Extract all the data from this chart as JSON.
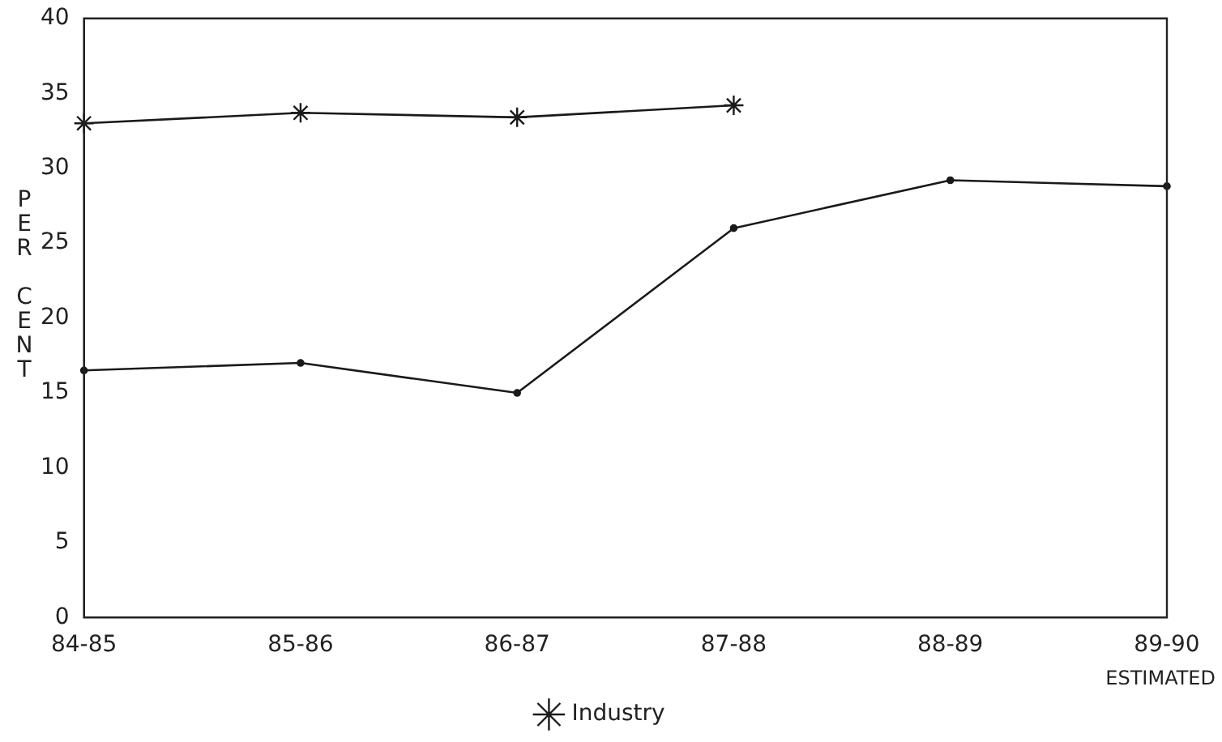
{
  "chart_data": {
    "type": "line",
    "ylabel": "PER CENT",
    "categories": [
      "84-85",
      "85-86",
      "86-87",
      "87-88",
      "88-89",
      "89-90"
    ],
    "series": [
      {
        "color": "#1a1a1a",
        "marker": "circle",
        "values": [
          16.5,
          17,
          15,
          26,
          29.2,
          28.8
        ]
      },
      {
        "name": "Industry",
        "color": "#1a1a1a",
        "marker": "cross",
        "values": [
          33,
          33.7,
          33.4,
          34.2,
          null,
          null
        ]
      }
    ],
    "ylim": [
      0,
      40
    ],
    "yticks": [
      0,
      5,
      10,
      15,
      20,
      25,
      30,
      35,
      40
    ],
    "grid": false,
    "legend": "bottom",
    "line_style": "solid",
    "annotations": [
      "ESTIMATED"
    ]
  }
}
